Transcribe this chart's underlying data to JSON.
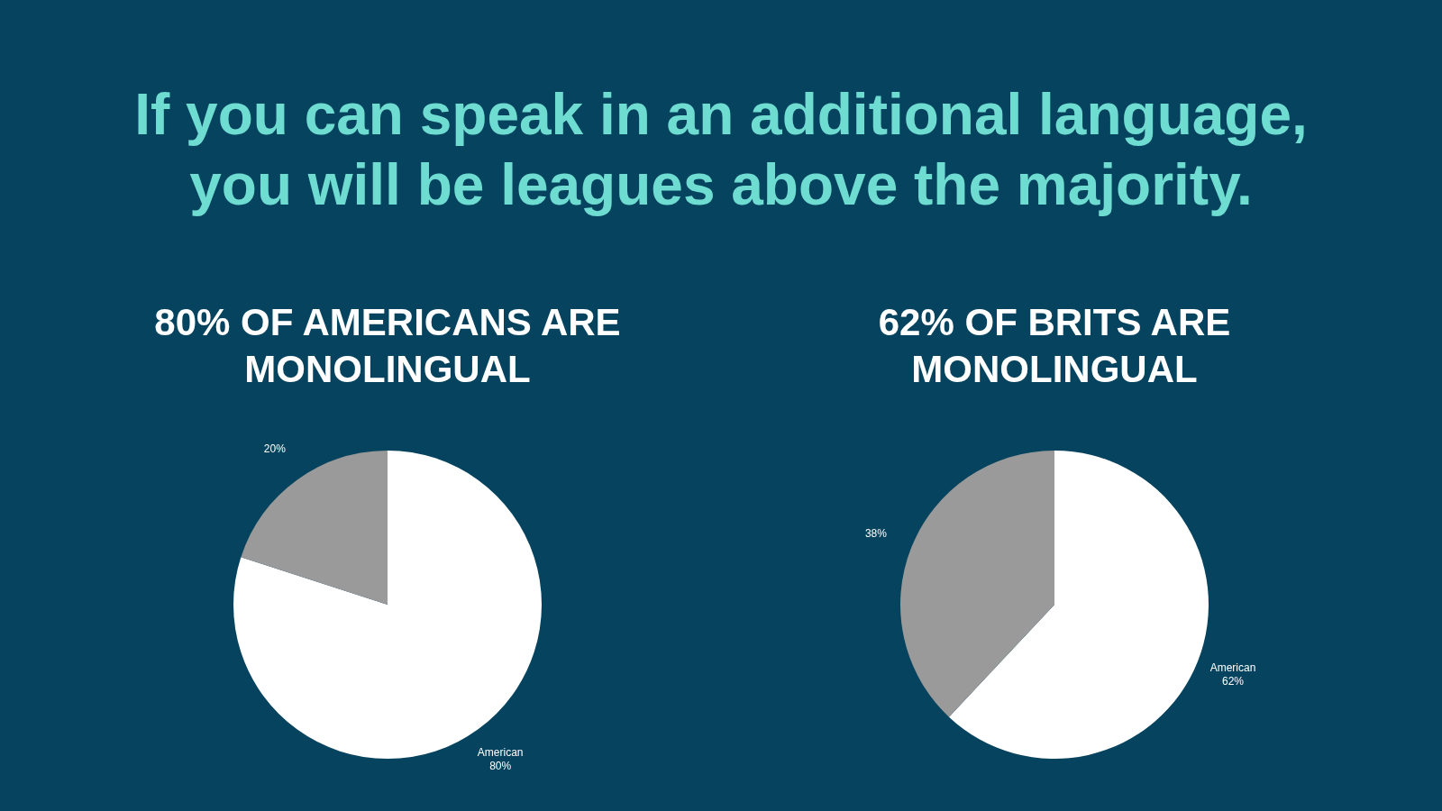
{
  "chart_data": [
    {
      "type": "other",
      "title": "If you can speak in an additional language, you will be leagues above the majority."
    },
    {
      "type": "pie",
      "title": "80% OF AMERICANS ARE MONOLINGUAL",
      "categories": [
        "American",
        null
      ],
      "values": [
        80,
        20
      ],
      "value_labels": [
        "80%",
        "20%"
      ],
      "colors": [
        "#ffffff",
        "#9a9a9a"
      ]
    },
    {
      "type": "pie",
      "title": "62% OF BRITS ARE MONOLINGUAL",
      "categories": [
        "American",
        null
      ],
      "values": [
        62,
        38
      ],
      "value_labels": [
        "62%",
        "38%"
      ],
      "colors": [
        "#ffffff",
        "#9a9a9a"
      ]
    }
  ]
}
